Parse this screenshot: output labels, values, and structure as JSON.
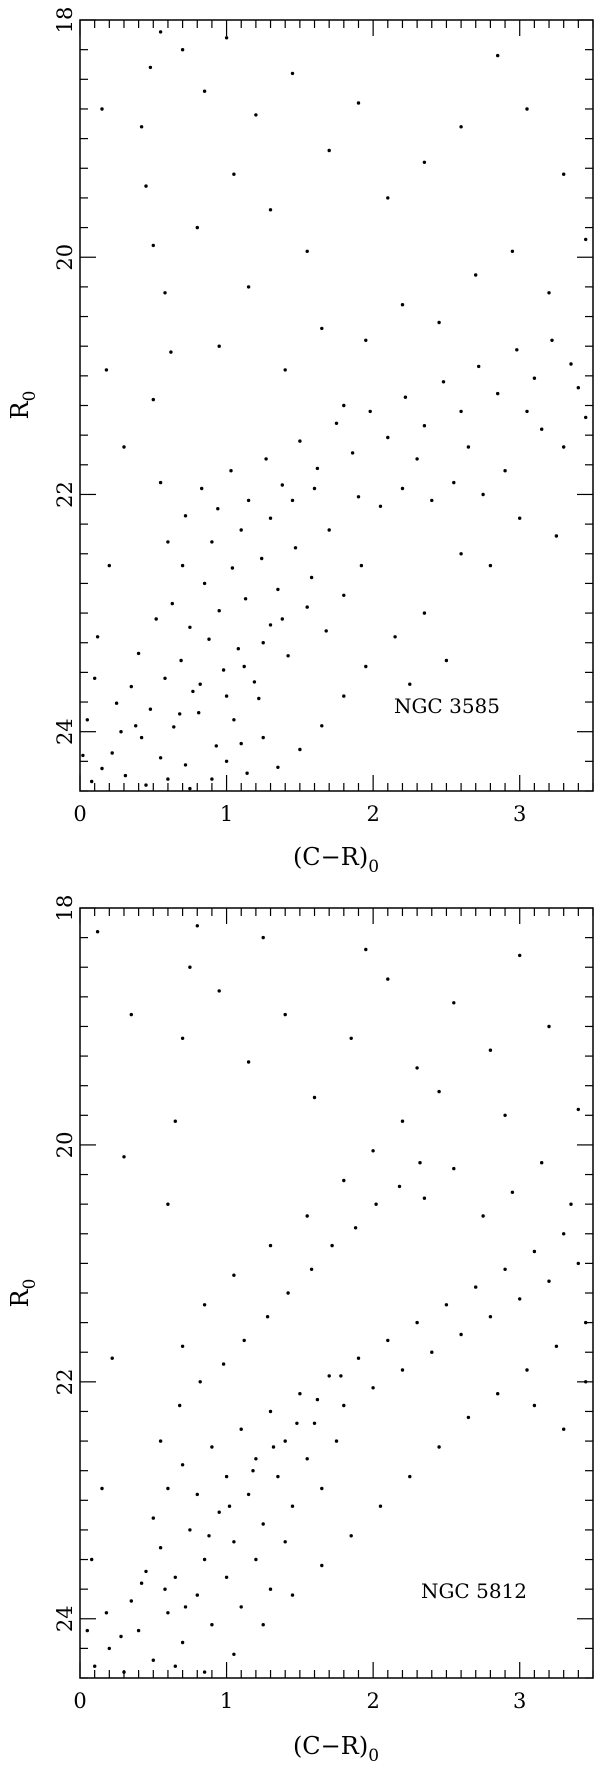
{
  "chart_data": [
    {
      "type": "scatter",
      "label": "NGC 3585",
      "xlabel": "(C−R)",
      "xlabel_sub": "0",
      "ylabel": "R",
      "ylabel_sub": "0",
      "xlim": [
        0,
        3.5
      ],
      "ylim": [
        24.5,
        18
      ],
      "y_inverted": true,
      "xticks": [
        0,
        1,
        2,
        3
      ],
      "yticks": [
        18,
        20,
        22,
        24
      ],
      "marker_color": "#000000",
      "points": [
        [
          0.08,
          24.42
        ],
        [
          0.15,
          24.31
        ],
        [
          0.22,
          24.18
        ],
        [
          0.31,
          24.37
        ],
        [
          0.42,
          24.05
        ],
        [
          0.55,
          24.22
        ],
        [
          0.64,
          23.96
        ],
        [
          0.72,
          24.28
        ],
        [
          0.81,
          23.84
        ],
        [
          0.93,
          24.12
        ],
        [
          1.05,
          23.9
        ],
        [
          1.14,
          24.35
        ],
        [
          1.22,
          23.72
        ],
        [
          0.35,
          23.62
        ],
        [
          0.48,
          23.81
        ],
        [
          0.58,
          23.55
        ],
        [
          0.69,
          23.4
        ],
        [
          0.77,
          23.66
        ],
        [
          0.88,
          23.22
        ],
        [
          0.98,
          23.48
        ],
        [
          1.08,
          23.3
        ],
        [
          1.19,
          23.58
        ],
        [
          1.3,
          23.1
        ],
        [
          1.42,
          23.36
        ],
        [
          0.25,
          23.76
        ],
        [
          0.4,
          23.34
        ],
        [
          0.52,
          23.05
        ],
        [
          0.63,
          22.92
        ],
        [
          0.75,
          23.12
        ],
        [
          0.85,
          22.75
        ],
        [
          0.95,
          22.98
        ],
        [
          1.04,
          22.62
        ],
        [
          1.13,
          22.88
        ],
        [
          1.24,
          22.54
        ],
        [
          1.35,
          22.8
        ],
        [
          1.47,
          22.45
        ],
        [
          1.58,
          22.7
        ],
        [
          1.7,
          22.3
        ],
        [
          0.6,
          22.4
        ],
        [
          0.72,
          22.18
        ],
        [
          0.83,
          21.95
        ],
        [
          0.94,
          22.12
        ],
        [
          1.03,
          21.8
        ],
        [
          1.15,
          22.05
        ],
        [
          1.27,
          21.7
        ],
        [
          1.38,
          21.92
        ],
        [
          1.5,
          21.55
        ],
        [
          1.62,
          21.78
        ],
        [
          1.75,
          21.4
        ],
        [
          1.86,
          21.65
        ],
        [
          1.98,
          21.3
        ],
        [
          2.1,
          21.52
        ],
        [
          2.22,
          21.18
        ],
        [
          2.35,
          21.42
        ],
        [
          2.48,
          21.05
        ],
        [
          2.6,
          21.3
        ],
        [
          2.72,
          20.92
        ],
        [
          2.85,
          21.15
        ],
        [
          2.98,
          20.78
        ],
        [
          3.1,
          21.02
        ],
        [
          3.22,
          20.7
        ],
        [
          3.35,
          20.9
        ],
        [
          3.45,
          21.35
        ],
        [
          3.3,
          21.6
        ],
        [
          3.15,
          21.45
        ],
        [
          2.9,
          21.8
        ],
        [
          2.75,
          22.0
        ],
        [
          2.55,
          21.9
        ],
        [
          2.4,
          22.05
        ],
        [
          2.2,
          21.95
        ],
        [
          2.05,
          22.1
        ],
        [
          1.9,
          22.02
        ],
        [
          3.0,
          22.2
        ],
        [
          3.25,
          22.35
        ],
        [
          2.8,
          22.6
        ],
        [
          2.6,
          22.5
        ],
        [
          2.35,
          23.0
        ],
        [
          2.15,
          23.2
        ],
        [
          1.95,
          23.45
        ],
        [
          1.8,
          23.7
        ],
        [
          1.65,
          23.95
        ],
        [
          1.5,
          24.15
        ],
        [
          1.35,
          24.3
        ],
        [
          2.5,
          23.4
        ],
        [
          2.25,
          23.6
        ],
        [
          0.55,
          21.9
        ],
        [
          0.5,
          21.2
        ],
        [
          0.62,
          20.8
        ],
        [
          0.58,
          20.3
        ],
        [
          0.5,
          19.9
        ],
        [
          0.45,
          19.4
        ],
        [
          0.42,
          18.9
        ],
        [
          0.48,
          18.4
        ],
        [
          0.55,
          18.1
        ],
        [
          0.7,
          18.25
        ],
        [
          0.85,
          18.6
        ],
        [
          1.0,
          18.15
        ],
        [
          1.2,
          18.8
        ],
        [
          1.45,
          18.45
        ],
        [
          1.7,
          19.1
        ],
        [
          1.9,
          18.7
        ],
        [
          2.1,
          19.5
        ],
        [
          2.35,
          19.2
        ],
        [
          2.6,
          18.9
        ],
        [
          2.85,
          18.3
        ],
        [
          3.05,
          18.75
        ],
        [
          3.3,
          19.3
        ],
        [
          3.45,
          19.85
        ],
        [
          3.2,
          20.3
        ],
        [
          2.95,
          19.95
        ],
        [
          2.7,
          20.15
        ],
        [
          2.45,
          20.55
        ],
        [
          2.2,
          20.4
        ],
        [
          1.95,
          20.7
        ],
        [
          1.65,
          20.6
        ],
        [
          1.4,
          20.95
        ],
        [
          1.15,
          20.25
        ],
        [
          0.95,
          20.75
        ],
        [
          0.8,
          19.75
        ],
        [
          1.05,
          19.3
        ],
        [
          1.3,
          19.6
        ],
        [
          1.55,
          19.95
        ],
        [
          0.2,
          22.6
        ],
        [
          0.12,
          23.2
        ],
        [
          0.05,
          23.9
        ],
        [
          0.3,
          21.6
        ],
        [
          0.18,
          20.95
        ],
        [
          0.15,
          18.75
        ],
        [
          0.02,
          24.2
        ],
        [
          0.1,
          23.55
        ],
        [
          0.28,
          24.0
        ],
        [
          0.38,
          23.95
        ],
        [
          0.45,
          24.45
        ],
        [
          0.6,
          24.4
        ],
        [
          0.75,
          24.48
        ],
        [
          0.9,
          24.4
        ],
        [
          1.0,
          24.25
        ],
        [
          1.1,
          24.1
        ],
        [
          1.25,
          24.05
        ],
        [
          0.68,
          23.85
        ],
        [
          0.82,
          23.6
        ],
        [
          1.0,
          23.7
        ],
        [
          1.12,
          23.45
        ],
        [
          1.25,
          23.25
        ],
        [
          1.38,
          23.05
        ],
        [
          1.55,
          22.95
        ],
        [
          1.68,
          23.15
        ],
        [
          1.8,
          22.85
        ],
        [
          1.92,
          22.6
        ],
        [
          0.7,
          22.6
        ],
        [
          0.9,
          22.4
        ],
        [
          1.1,
          22.3
        ],
        [
          1.3,
          22.2
        ],
        [
          1.45,
          22.05
        ],
        [
          1.6,
          21.95
        ],
        [
          3.4,
          21.1
        ],
        [
          3.05,
          21.3
        ],
        [
          2.65,
          21.6
        ],
        [
          2.3,
          21.7
        ],
        [
          1.8,
          21.25
        ]
      ]
    },
    {
      "type": "scatter",
      "label": "NGC 5812",
      "xlabel": "(C−R)",
      "xlabel_sub": "0",
      "ylabel": "R",
      "ylabel_sub": "0",
      "xlim": [
        0,
        3.5
      ],
      "ylim": [
        24.5,
        18
      ],
      "y_inverted": true,
      "xticks": [
        0,
        1,
        2,
        3
      ],
      "yticks": [
        18,
        20,
        22,
        24
      ],
      "marker_color": "#000000",
      "points": [
        [
          0.1,
          24.4
        ],
        [
          0.2,
          24.25
        ],
        [
          0.3,
          24.45
        ],
        [
          0.4,
          24.1
        ],
        [
          0.5,
          24.35
        ],
        [
          0.6,
          23.95
        ],
        [
          0.7,
          24.2
        ],
        [
          0.8,
          23.8
        ],
        [
          0.9,
          24.05
        ],
        [
          1.0,
          23.65
        ],
        [
          1.1,
          23.9
        ],
        [
          1.2,
          23.5
        ],
        [
          1.3,
          23.75
        ],
        [
          1.4,
          23.35
        ],
        [
          0.35,
          23.85
        ],
        [
          0.45,
          23.6
        ],
        [
          0.55,
          23.4
        ],
        [
          0.65,
          23.65
        ],
        [
          0.75,
          23.25
        ],
        [
          0.85,
          23.5
        ],
        [
          0.95,
          23.1
        ],
        [
          1.05,
          23.35
        ],
        [
          1.15,
          22.95
        ],
        [
          1.25,
          23.2
        ],
        [
          1.35,
          22.8
        ],
        [
          1.45,
          23.05
        ],
        [
          1.55,
          22.65
        ],
        [
          1.65,
          22.9
        ],
        [
          1.75,
          22.5
        ],
        [
          0.5,
          23.15
        ],
        [
          0.6,
          22.9
        ],
        [
          0.7,
          22.7
        ],
        [
          0.8,
          22.95
        ],
        [
          0.9,
          22.55
        ],
        [
          1.0,
          22.8
        ],
        [
          1.1,
          22.4
        ],
        [
          1.2,
          22.65
        ],
        [
          1.3,
          22.25
        ],
        [
          1.4,
          22.5
        ],
        [
          1.5,
          22.1
        ],
        [
          1.6,
          22.35
        ],
        [
          1.7,
          21.95
        ],
        [
          1.8,
          22.2
        ],
        [
          1.9,
          21.8
        ],
        [
          2.0,
          22.05
        ],
        [
          2.1,
          21.65
        ],
        [
          2.2,
          21.9
        ],
        [
          2.3,
          21.5
        ],
        [
          2.4,
          21.75
        ],
        [
          2.5,
          21.35
        ],
        [
          2.6,
          21.6
        ],
        [
          2.7,
          21.2
        ],
        [
          2.8,
          21.45
        ],
        [
          2.9,
          21.05
        ],
        [
          3.0,
          21.3
        ],
        [
          3.1,
          20.9
        ],
        [
          3.2,
          21.15
        ],
        [
          3.3,
          20.75
        ],
        [
          3.4,
          21.0
        ],
        [
          3.45,
          21.5
        ],
        [
          3.25,
          21.7
        ],
        [
          3.05,
          21.9
        ],
        [
          2.85,
          22.1
        ],
        [
          2.65,
          22.3
        ],
        [
          2.45,
          22.55
        ],
        [
          2.25,
          22.8
        ],
        [
          2.05,
          23.05
        ],
        [
          1.85,
          23.3
        ],
        [
          1.65,
          23.55
        ],
        [
          1.45,
          23.8
        ],
        [
          1.25,
          24.05
        ],
        [
          1.05,
          24.3
        ],
        [
          0.85,
          24.45
        ],
        [
          0.65,
          24.4
        ],
        [
          2.95,
          20.4
        ],
        [
          2.75,
          20.6
        ],
        [
          2.55,
          20.2
        ],
        [
          2.35,
          20.45
        ],
        [
          3.15,
          20.15
        ],
        [
          3.35,
          20.5
        ],
        [
          2.2,
          19.8
        ],
        [
          2.0,
          20.05
        ],
        [
          1.8,
          20.3
        ],
        [
          1.55,
          20.6
        ],
        [
          1.3,
          20.85
        ],
        [
          1.05,
          21.1
        ],
        [
          0.85,
          21.35
        ],
        [
          0.7,
          21.7
        ],
        [
          0.6,
          20.5
        ],
        [
          0.65,
          19.8
        ],
        [
          0.7,
          19.1
        ],
        [
          0.75,
          18.5
        ],
        [
          0.8,
          18.15
        ],
        [
          0.95,
          18.7
        ],
        [
          1.15,
          19.3
        ],
        [
          1.4,
          18.9
        ],
        [
          1.6,
          19.6
        ],
        [
          1.85,
          19.1
        ],
        [
          2.1,
          18.6
        ],
        [
          2.3,
          19.35
        ],
        [
          2.55,
          18.8
        ],
        [
          2.8,
          19.2
        ],
        [
          3.0,
          18.4
        ],
        [
          3.2,
          19.0
        ],
        [
          3.4,
          19.7
        ],
        [
          2.9,
          19.75
        ],
        [
          2.45,
          19.55
        ],
        [
          1.95,
          18.35
        ],
        [
          1.25,
          18.25
        ],
        [
          0.15,
          22.9
        ],
        [
          0.08,
          23.5
        ],
        [
          0.22,
          21.8
        ],
        [
          0.3,
          20.1
        ],
        [
          0.12,
          18.2
        ],
        [
          0.35,
          18.9
        ],
        [
          0.05,
          24.1
        ],
        [
          0.18,
          23.95
        ],
        [
          0.28,
          24.15
        ],
        [
          0.42,
          23.7
        ],
        [
          0.58,
          23.75
        ],
        [
          0.72,
          23.9
        ],
        [
          0.88,
          23.3
        ],
        [
          1.02,
          23.05
        ],
        [
          1.18,
          22.75
        ],
        [
          1.32,
          22.55
        ],
        [
          1.48,
          22.35
        ],
        [
          1.62,
          22.15
        ],
        [
          1.78,
          21.95
        ],
        [
          0.55,
          22.5
        ],
        [
          0.68,
          22.2
        ],
        [
          0.82,
          22.0
        ],
        [
          0.98,
          21.85
        ],
        [
          1.12,
          21.65
        ],
        [
          1.28,
          21.45
        ],
        [
          1.42,
          21.25
        ],
        [
          1.58,
          21.05
        ],
        [
          1.72,
          20.85
        ],
        [
          1.88,
          20.7
        ],
        [
          2.02,
          20.5
        ],
        [
          2.18,
          20.35
        ],
        [
          2.32,
          20.15
        ],
        [
          3.1,
          22.2
        ],
        [
          3.3,
          22.4
        ],
        [
          3.45,
          22.0
        ]
      ]
    }
  ]
}
